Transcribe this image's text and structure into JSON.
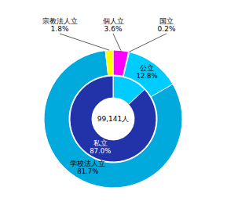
{
  "chart_data": {
    "type": "pie",
    "data_labels": true,
    "annotations": [
      "99,141人"
    ],
    "series": [
      {
        "categories": [
          "個人立",
          "国立",
          "公立",
          "学校法人立",
          "宗教法人立"
        ],
        "values": [
          3.6,
          0.2,
          12.8,
          81.7,
          1.8
        ],
        "value_labels": [
          "3.6%",
          "0.2%",
          "12.8%",
          "81.7%",
          "1.8%"
        ],
        "colors": [
          "#ff00ff",
          "#00ccff",
          "#00ccff",
          "#00aadd",
          "#ffff00"
        ]
      },
      {
        "categories": [
          null,
          "私立"
        ],
        "values": [
          13.0,
          87.0
        ],
        "value_labels": [
          null,
          "87.0%"
        ],
        "colors": [
          "#00ccff",
          "#2233aa"
        ]
      }
    ]
  }
}
